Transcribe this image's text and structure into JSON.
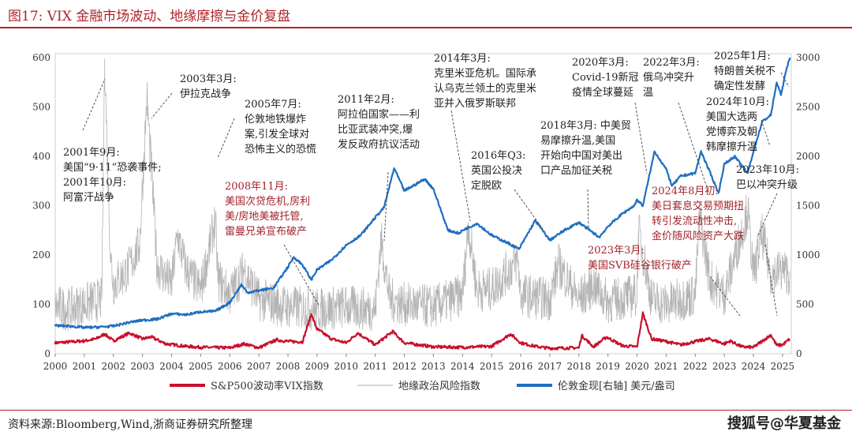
{
  "header": {
    "title": "图17:    VIX 金融市场波动、地缘摩擦与金价复盘"
  },
  "footer": {
    "source": "资料来源:Bloomberg,Wind,浙商证券研究所整理",
    "watermark": "搜狐号@华夏基金"
  },
  "colors": {
    "vix": "#c8102e",
    "geo": "#b5b5b5",
    "gold": "#1f6fc1",
    "annotation_black": "#222222",
    "annotation_red": "#a3232a",
    "frame_red": "#b0252a"
  },
  "chart_data": {
    "type": "line",
    "title": "",
    "x_range": [
      2000,
      2025.3
    ],
    "x_ticks": [
      "2000",
      "2001",
      "2002",
      "2003",
      "2004",
      "2005",
      "2006",
      "2007",
      "2008",
      "2009",
      "2010",
      "2011",
      "2012",
      "2013",
      "2014",
      "2015",
      "2016",
      "2017",
      "2018",
      "2019",
      "2020",
      "2021",
      "2022",
      "2023",
      "2024",
      "2025"
    ],
    "y_left": {
      "range": [
        0,
        600
      ],
      "ticks": [
        "0",
        "100",
        "200",
        "300",
        "400",
        "500",
        "600"
      ]
    },
    "y_right": {
      "range": [
        0,
        3000
      ],
      "ticks": [
        "0",
        "500",
        "1000",
        "1500",
        "2000",
        "2500",
        "3000"
      ]
    },
    "legend_position": "bottom",
    "series": [
      {
        "name": "S&P500波动率VIX指数",
        "axis": "left",
        "key": "vix",
        "points": [
          [
            2000,
            22
          ],
          [
            2000.5,
            24
          ],
          [
            2001,
            26
          ],
          [
            2001.4,
            30
          ],
          [
            2001.7,
            40
          ],
          [
            2002,
            26
          ],
          [
            2002.55,
            42
          ],
          [
            2003,
            30
          ],
          [
            2003.3,
            34
          ],
          [
            2003.8,
            20
          ],
          [
            2004.5,
            15
          ],
          [
            2005,
            13
          ],
          [
            2006,
            12
          ],
          [
            2006.5,
            20
          ],
          [
            2007,
            12
          ],
          [
            2007.6,
            28
          ],
          [
            2008,
            25
          ],
          [
            2008.5,
            24
          ],
          [
            2008.8,
            80
          ],
          [
            2009,
            50
          ],
          [
            2009.5,
            30
          ],
          [
            2010,
            22
          ],
          [
            2010.4,
            42
          ],
          [
            2011,
            18
          ],
          [
            2011.6,
            45
          ],
          [
            2012,
            22
          ],
          [
            2012.5,
            18
          ],
          [
            2013,
            14
          ],
          [
            2014,
            13
          ],
          [
            2015,
            15
          ],
          [
            2015.65,
            40
          ],
          [
            2016,
            22
          ],
          [
            2016.5,
            15
          ],
          [
            2017,
            11
          ],
          [
            2018,
            12
          ],
          [
            2018.1,
            37
          ],
          [
            2018.5,
            14
          ],
          [
            2018.95,
            34
          ],
          [
            2019.5,
            16
          ],
          [
            2020,
            14
          ],
          [
            2020.2,
            82
          ],
          [
            2020.5,
            30
          ],
          [
            2021,
            25
          ],
          [
            2021.5,
            18
          ],
          [
            2022,
            25
          ],
          [
            2022.5,
            30
          ],
          [
            2023,
            20
          ],
          [
            2023.2,
            26
          ],
          [
            2023.6,
            14
          ],
          [
            2024,
            13
          ],
          [
            2024.6,
            38
          ],
          [
            2024.8,
            17
          ],
          [
            2025,
            18
          ],
          [
            2025.25,
            30
          ]
        ]
      },
      {
        "name": "地缘政治风险指数",
        "axis": "left",
        "key": "geo",
        "points": [
          [
            2000,
            95
          ],
          [
            2000.5,
            90
          ],
          [
            2001,
            100
          ],
          [
            2001.6,
            110
          ],
          [
            2001.7,
            598
          ],
          [
            2001.78,
            420
          ],
          [
            2001.9,
            200
          ],
          [
            2002,
            140
          ],
          [
            2002.5,
            170
          ],
          [
            2002.9,
            220
          ],
          [
            2003.15,
            520
          ],
          [
            2003.3,
            380
          ],
          [
            2003.5,
            180
          ],
          [
            2004,
            140
          ],
          [
            2004.2,
            240
          ],
          [
            2004.5,
            170
          ],
          [
            2005,
            130
          ],
          [
            2005.5,
            270
          ],
          [
            2005.6,
            150
          ],
          [
            2006,
            120
          ],
          [
            2006.5,
            170
          ],
          [
            2007,
            110
          ],
          [
            2008,
            95
          ],
          [
            2009,
            90
          ],
          [
            2010,
            95
          ],
          [
            2011,
            90
          ],
          [
            2011.2,
            230
          ],
          [
            2011.5,
            110
          ],
          [
            2012,
            100
          ],
          [
            2013,
            95
          ],
          [
            2014,
            120
          ],
          [
            2014.2,
            260
          ],
          [
            2014.5,
            130
          ],
          [
            2015,
            130
          ],
          [
            2015.9,
            190
          ],
          [
            2016,
            120
          ],
          [
            2017,
            110
          ],
          [
            2017.3,
            180
          ],
          [
            2018,
            110
          ],
          [
            2018.5,
            140
          ],
          [
            2019,
            105
          ],
          [
            2020,
            120
          ],
          [
            2020.05,
            250
          ],
          [
            2020.5,
            110
          ],
          [
            2021,
            100
          ],
          [
            2022,
            120
          ],
          [
            2022.15,
            280
          ],
          [
            2022.5,
            150
          ],
          [
            2023,
            120
          ],
          [
            2023.8,
            290
          ],
          [
            2024,
            160
          ],
          [
            2024.3,
            240
          ],
          [
            2024.6,
            160
          ],
          [
            2025,
            170
          ],
          [
            2025.25,
            160
          ]
        ]
      },
      {
        "name": "伦敦金现[右轴] 美元/盎司",
        "axis": "right",
        "key": "gold",
        "points": [
          [
            2000,
            285
          ],
          [
            2000.5,
            280
          ],
          [
            2001,
            265
          ],
          [
            2001.5,
            270
          ],
          [
            2002,
            280
          ],
          [
            2002.5,
            315
          ],
          [
            2003,
            340
          ],
          [
            2003.5,
            350
          ],
          [
            2004,
            405
          ],
          [
            2004.5,
            395
          ],
          [
            2005,
            425
          ],
          [
            2005.5,
            430
          ],
          [
            2006,
            520
          ],
          [
            2006.4,
            700
          ],
          [
            2006.6,
            620
          ],
          [
            2007,
            640
          ],
          [
            2007.5,
            665
          ],
          [
            2008,
            880
          ],
          [
            2008.2,
            980
          ],
          [
            2008.5,
            900
          ],
          [
            2008.8,
            750
          ],
          [
            2009,
            850
          ],
          [
            2009.5,
            950
          ],
          [
            2010,
            1100
          ],
          [
            2010.5,
            1200
          ],
          [
            2011,
            1380
          ],
          [
            2011.3,
            1480
          ],
          [
            2011.65,
            1880
          ],
          [
            2012,
            1650
          ],
          [
            2012.7,
            1770
          ],
          [
            2013,
            1670
          ],
          [
            2013.5,
            1250
          ],
          [
            2013.9,
            1220
          ],
          [
            2014,
            1250
          ],
          [
            2014.5,
            1320
          ],
          [
            2015,
            1200
          ],
          [
            2015.5,
            1130
          ],
          [
            2015.95,
            1060
          ],
          [
            2016,
            1090
          ],
          [
            2016.5,
            1350
          ],
          [
            2017,
            1150
          ],
          [
            2017.5,
            1250
          ],
          [
            2018,
            1330
          ],
          [
            2018.7,
            1180
          ],
          [
            2019,
            1290
          ],
          [
            2019.5,
            1420
          ],
          [
            2019.9,
            1500
          ],
          [
            2020,
            1560
          ],
          [
            2020.2,
            1500
          ],
          [
            2020.6,
            2050
          ],
          [
            2021,
            1870
          ],
          [
            2021.2,
            1700
          ],
          [
            2021.5,
            1800
          ],
          [
            2022,
            1830
          ],
          [
            2022.2,
            2050
          ],
          [
            2022.8,
            1630
          ],
          [
            2023,
            1920
          ],
          [
            2023.35,
            2000
          ],
          [
            2023.8,
            1830
          ],
          [
            2024,
            2050
          ],
          [
            2024.3,
            2350
          ],
          [
            2024.6,
            2420
          ],
          [
            2024.8,
            2750
          ],
          [
            2024.95,
            2620
          ],
          [
            2025,
            2700
          ],
          [
            2025.15,
            2900
          ],
          [
            2025.25,
            3000
          ]
        ]
      }
    ],
    "annotations": [
      {
        "lines": [
          "2001年9月:",
          "美国“9·11”恐袭事件;",
          "2001年10月:",
          "阿富汗战争"
        ],
        "color": "black"
      },
      {
        "lines": [
          "2003年3月:",
          "伊拉克战争"
        ],
        "color": "black"
      },
      {
        "lines": [
          "2005年7月:",
          "伦敦地铁爆炸",
          "案,引发全球对",
          "恐怖主义的恐慌"
        ],
        "color": "black"
      },
      {
        "lines": [
          "2008年11月:",
          "美国次贷危机,房利",
          "美/房地美被托管,",
          "雷曼兄弟宣布破产"
        ],
        "color": "red"
      },
      {
        "lines": [
          "2011年2月:",
          "阿拉伯国家——利",
          "比亚武装冲突,爆",
          "发反政府抗议活动"
        ],
        "color": "black"
      },
      {
        "lines": [
          "2014年3月:",
          "克里米亚危机。国际承",
          "认乌克兰领土的克里米",
          "亚并入俄罗斯联邦"
        ],
        "color": "black"
      },
      {
        "lines": [
          "2016年Q3:",
          "英国公投决",
          "定脱欧"
        ],
        "color": "black"
      },
      {
        "lines": [
          "2018年3月:  中美贸",
          "易摩擦升温,美国",
          "开始向中国对美出",
          "口产品加征关税"
        ],
        "color": "black"
      },
      {
        "lines": [
          "2020年3月:",
          "Covid-19新冠",
          "疫情全球蔓延"
        ],
        "color": "black"
      },
      {
        "lines": [
          "2022年3月:",
          "俄乌冲突升",
          "温"
        ],
        "color": "black"
      },
      {
        "lines": [
          "2025年1月:",
          "特朗普关税不",
          "确定性发酵"
        ],
        "color": "black"
      },
      {
        "lines": [
          "2024年10月:",
          "美国大选两",
          "党博弈及朝",
          "韩摩擦升温"
        ],
        "color": "black"
      },
      {
        "lines": [
          "2023年10月:",
          "巴以冲突升级"
        ],
        "color": "black"
      },
      {
        "lines": [
          "2024年8月初:",
          "美日套息交易预期扭",
          "转引发流动性冲击,",
          "金价随风险资产大跌"
        ],
        "color": "red"
      },
      {
        "lines": [
          "2023年3月:",
          "美国SVB硅谷银行破产"
        ],
        "color": "red"
      }
    ]
  }
}
